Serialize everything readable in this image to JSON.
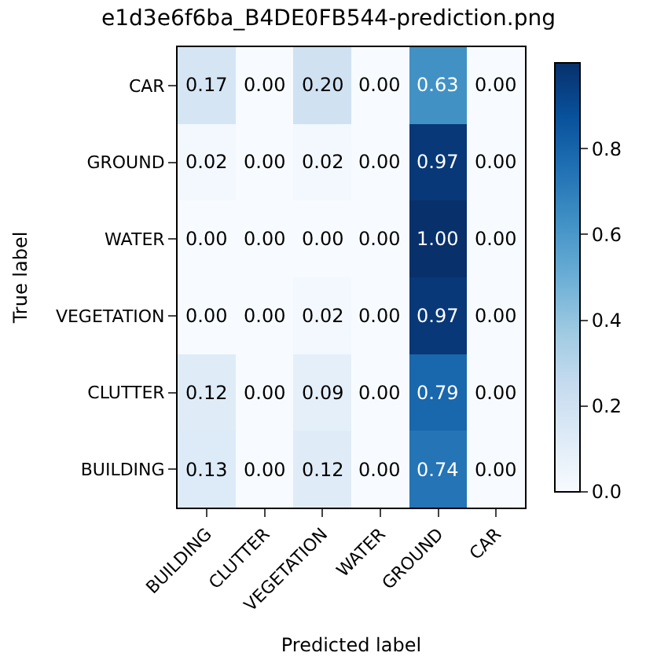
{
  "chart_data": {
    "type": "heatmap",
    "title": "e1d3e6f6ba_B4DE0FB544-prediction.png",
    "xlabel": "Predicted label",
    "ylabel": "True label",
    "categories": [
      "BUILDING",
      "CLUTTER",
      "VEGETATION",
      "WATER",
      "GROUND",
      "CAR"
    ],
    "y_categories": [
      "CAR",
      "GROUND",
      "WATER",
      "VEGETATION",
      "CLUTTER",
      "BUILDING"
    ],
    "cells": [
      [
        0.17,
        0.0,
        0.2,
        0.0,
        0.63,
        0.0
      ],
      [
        0.02,
        0.0,
        0.02,
        0.0,
        0.97,
        0.0
      ],
      [
        0.0,
        0.0,
        0.0,
        0.0,
        1.0,
        0.0
      ],
      [
        0.0,
        0.0,
        0.02,
        0.0,
        0.97,
        0.0
      ],
      [
        0.12,
        0.0,
        0.09,
        0.0,
        0.79,
        0.0
      ],
      [
        0.13,
        0.0,
        0.12,
        0.0,
        0.74,
        0.0
      ]
    ],
    "cell_labels": [
      [
        "0.17",
        "0.00",
        "0.20",
        "0.00",
        "0.63",
        "0.00"
      ],
      [
        "0.02",
        "0.00",
        "0.02",
        "0.00",
        "0.97",
        "0.00"
      ],
      [
        "0.00",
        "0.00",
        "0.00",
        "0.00",
        "1.00",
        "0.00"
      ],
      [
        "0.00",
        "0.00",
        "0.02",
        "0.00",
        "0.97",
        "0.00"
      ],
      [
        "0.12",
        "0.00",
        "0.09",
        "0.00",
        "0.79",
        "0.00"
      ],
      [
        "0.13",
        "0.00",
        "0.12",
        "0.00",
        "0.74",
        "0.00"
      ]
    ],
    "clim": [
      0,
      1.0
    ],
    "cticks": [
      {
        "value": 0,
        "label": "0.0"
      },
      0.2,
      0.4,
      0.6,
      0.8
    ]
  }
}
